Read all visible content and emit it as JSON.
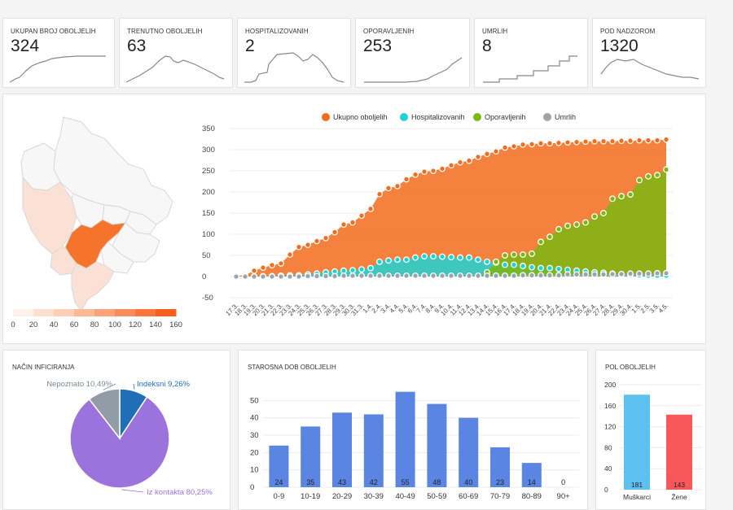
{
  "kpis": [
    {
      "title": "UKUPAN BROJ OBOLJELIH",
      "value": "324"
    },
    {
      "title": "TRENUTNO OBOLJELIH",
      "value": "63"
    },
    {
      "title": "HOSPITALIZOVANIH",
      "value": "2"
    },
    {
      "title": "OPORAVLJENIH",
      "value": "253"
    },
    {
      "title": "UMRLIH",
      "value": "8"
    },
    {
      "title": "POD NADZOROM",
      "value": "1320"
    }
  ],
  "map_legend": {
    "ticks": [
      "0",
      "20",
      "40",
      "60",
      "80",
      "100",
      "120",
      "140",
      "160"
    ],
    "colors": [
      "#fdf1ec",
      "#fde0d2",
      "#fdcdb5",
      "#fcb996",
      "#fba279",
      "#fa8c5a",
      "#f9763b",
      "#f85f1e"
    ]
  },
  "panels": {
    "infection_title": "NAČIN INFICIRANJA",
    "age_title": "STAROSNA DOB OBOLJELIH",
    "sex_title": "POL OBOLJELIH"
  },
  "chart_data": [
    {
      "type": "area",
      "title": "",
      "x": [
        "17.3.",
        "18.3.",
        "19.3.",
        "20.3.",
        "21.3.",
        "22.3.",
        "23.3.",
        "24.3.",
        "25.3.",
        "26.3.",
        "27.3.",
        "28.3.",
        "29.3.",
        "30.3.",
        "31.3.",
        "1.4.",
        "2.4.",
        "3.4.",
        "4.4.",
        "5.4.",
        "6.4.",
        "7.4.",
        "8.4.",
        "9.4.",
        "10.4.",
        "11.4.",
        "12.4.",
        "13.4.",
        "14.4.",
        "15.4.",
        "16.4.",
        "17.4.",
        "18.4.",
        "19.4.",
        "20.4.",
        "21.4.",
        "22.4.",
        "23.4.",
        "24.4.",
        "25.4.",
        "26.4.",
        "27.4.",
        "28.4.",
        "29.4.",
        "30.4.",
        "1.5.",
        "2.5.",
        "3.5.",
        "4.5."
      ],
      "ylim": [
        -50,
        350
      ],
      "yticks": [
        -50,
        0,
        50,
        100,
        150,
        200,
        250,
        300,
        350
      ],
      "legend_position": "top",
      "series": [
        {
          "name": "Ukupno oboljelih",
          "color": "#f36b1c",
          "values": [
            2,
            3,
            14,
            21,
            27,
            31,
            52,
            70,
            75,
            84,
            91,
            105,
            123,
            128,
            144,
            160,
            195,
            209,
            214,
            230,
            241,
            248,
            250,
            255,
            263,
            270,
            274,
            283,
            290,
            296,
            305,
            308,
            312,
            313,
            315,
            315,
            316,
            317,
            318,
            319,
            320,
            320,
            320,
            321,
            321,
            322,
            322,
            322,
            324
          ]
        },
        {
          "name": "Hospitalizovanih",
          "color": "#1ed3d3",
          "values": [
            0,
            0,
            0,
            1,
            1,
            2,
            3,
            3,
            5,
            7,
            10,
            12,
            14,
            15,
            17,
            20,
            35,
            38,
            40,
            40,
            45,
            48,
            48,
            47,
            46,
            45,
            45,
            40,
            35,
            33,
            28,
            28,
            25,
            22,
            20,
            20,
            18,
            16,
            14,
            12,
            10,
            9,
            7,
            5,
            4,
            3,
            2,
            2,
            2
          ]
        },
        {
          "name": "Oporavljenih",
          "color": "#7cb712",
          "values": [
            0,
            0,
            0,
            0,
            0,
            0,
            0,
            0,
            0,
            0,
            0,
            0,
            0,
            0,
            0,
            0,
            0,
            0,
            0,
            0,
            0,
            0,
            0,
            0,
            0,
            0,
            0,
            0,
            10,
            35,
            50,
            52,
            52,
            54,
            82,
            94,
            112,
            120,
            123,
            128,
            142,
            150,
            184,
            190,
            194,
            228,
            237,
            240,
            253
          ]
        },
        {
          "name": "Umrlih",
          "color": "#9aa4ae",
          "values": [
            0,
            0,
            0,
            0,
            0,
            0,
            0,
            0,
            1,
            1,
            1,
            1,
            2,
            2,
            2,
            2,
            2,
            2,
            2,
            2,
            2,
            2,
            2,
            2,
            2,
            2,
            2,
            2,
            2,
            2,
            2,
            2,
            3,
            3,
            3,
            3,
            3,
            5,
            5,
            5,
            5,
            5,
            6,
            6,
            7,
            7,
            7,
            8,
            8
          ]
        }
      ]
    },
    {
      "type": "pie",
      "title": "",
      "slices": [
        {
          "label": "Indeksni 9,26%",
          "value": 9.26,
          "color": "#1f6fb8"
        },
        {
          "label": "Iz kontakta 80,25%",
          "value": 80.25,
          "color": "#9c72dc"
        },
        {
          "label": "Nepoznato 10,49%",
          "value": 10.49,
          "color": "#929ca6"
        }
      ]
    },
    {
      "type": "bar",
      "title": "",
      "categories": [
        "0-9",
        "10-19",
        "20-29",
        "30-39",
        "40-49",
        "50-59",
        "60-69",
        "70-79",
        "80-89",
        "90+"
      ],
      "values": [
        24,
        35,
        43,
        42,
        55,
        48,
        40,
        23,
        14,
        0
      ],
      "ylim": [
        0,
        60
      ],
      "yticks": [
        0,
        10,
        20,
        30,
        40,
        50
      ],
      "color": "#5b85e3"
    },
    {
      "type": "bar",
      "title": "",
      "categories": [
        "Muškarci",
        "Žene"
      ],
      "values": [
        181,
        143
      ],
      "colors": [
        "#5dc1ef",
        "#f9585b"
      ],
      "ylim": [
        0,
        200
      ],
      "yticks": [
        0,
        40,
        80,
        120,
        160,
        200
      ]
    }
  ]
}
